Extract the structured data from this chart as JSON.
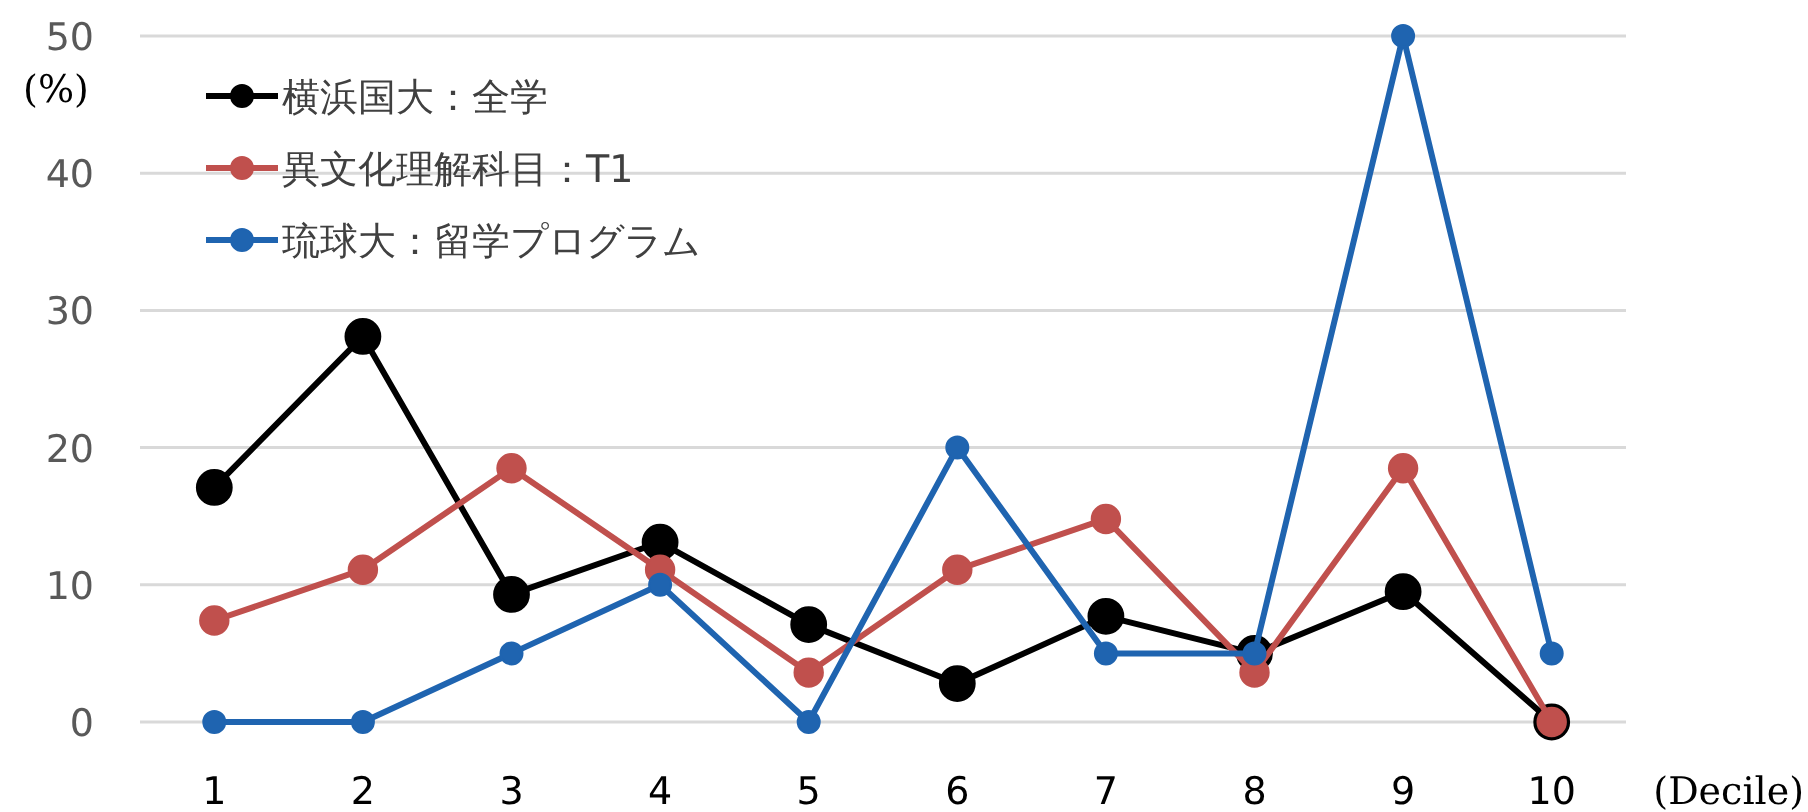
{
  "chart_data": {
    "type": "line",
    "ylabel": "(%)",
    "xlabel": "(Decile)",
    "categories": [
      "1",
      "2",
      "3",
      "4",
      "5",
      "6",
      "7",
      "8",
      "9",
      "10"
    ],
    "series": [
      {
        "name": "横浜国大：全学",
        "color": "#000000",
        "values": [
          17.1,
          28.1,
          9.3,
          13.1,
          7.1,
          2.8,
          7.7,
          5,
          9.5,
          0
        ]
      },
      {
        "name": "異文化理解科目：T1",
        "color": "#c0504d",
        "values": [
          7.4,
          11.1,
          18.5,
          11.1,
          3.6,
          11.1,
          14.8,
          3.6,
          18.5,
          0
        ]
      },
      {
        "name": "琉球大：留学プログラム",
        "color": "#1f64b0",
        "values": [
          0,
          0,
          5,
          10,
          0,
          20,
          5,
          5,
          50,
          5
        ]
      }
    ],
    "ylim": [
      0,
      50
    ],
    "yticks": [
      0,
      10,
      20,
      30,
      40,
      50
    ],
    "grid": "y",
    "legend": "top left",
    "marker": "circle"
  }
}
